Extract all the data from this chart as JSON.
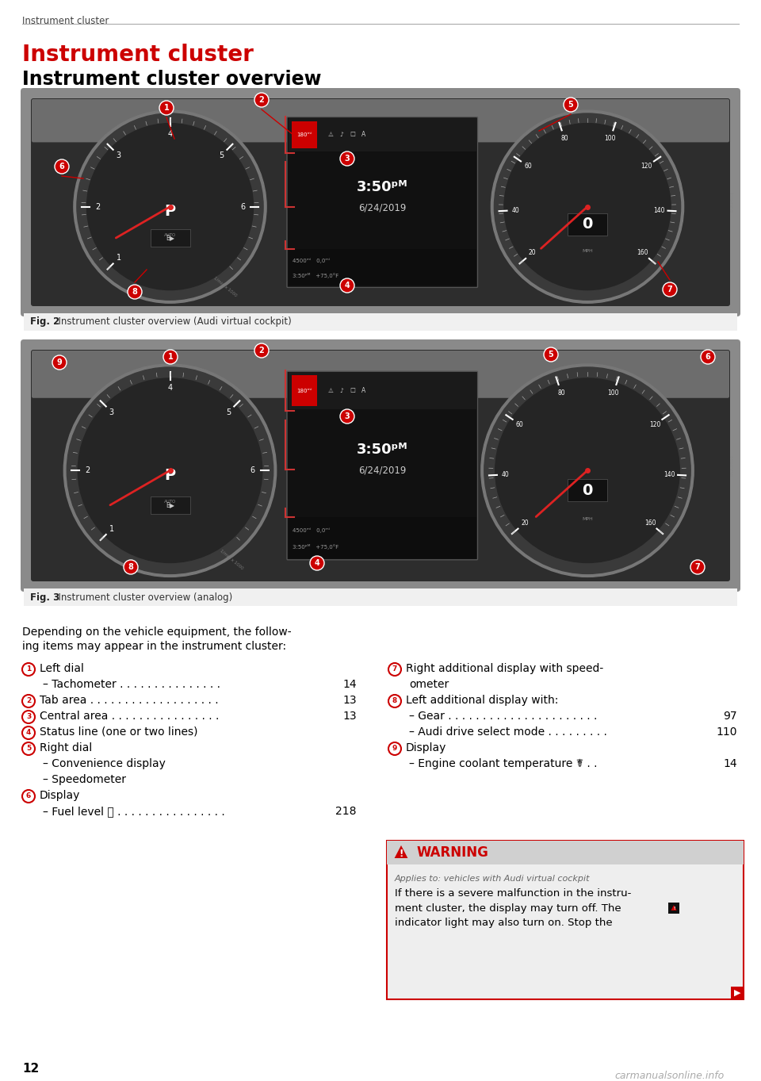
{
  "page_header": "Instrument cluster",
  "section_title": "Instrument cluster",
  "section_subtitle": "Instrument cluster overview",
  "fig2_caption_bold": "Fig. 2",
  "fig2_caption_rest": "  Instrument cluster overview (Audi virtual cockpit)",
  "fig3_caption_bold": "Fig. 3",
  "fig3_caption_rest": "  Instrument cluster overview (analog)",
  "body_line1": "Depending on the vehicle equipment, the follow-",
  "body_line2": "ing items may appear in the instrument cluster:",
  "left_items": [
    {
      "num": "1",
      "text": "Left dial",
      "bold": false,
      "indent": false,
      "page": ""
    },
    {
      "num": "",
      "text": "– Tachometer . . . . . . . . . . . . . . .",
      "bold": false,
      "indent": true,
      "page": "14"
    },
    {
      "num": "2",
      "text": "Tab area . . . . . . . . . . . . . . . . . . .",
      "bold": false,
      "indent": false,
      "page": "13"
    },
    {
      "num": "3",
      "text": "Central area . . . . . . . . . . . . . . . .",
      "bold": false,
      "indent": false,
      "page": "13"
    },
    {
      "num": "4",
      "text": "Status line (one or two lines)",
      "bold": false,
      "indent": false,
      "page": ""
    },
    {
      "num": "5",
      "text": "Right dial",
      "bold": false,
      "indent": false,
      "page": ""
    },
    {
      "num": "",
      "text": "– Convenience display",
      "bold": false,
      "indent": true,
      "page": ""
    },
    {
      "num": "",
      "text": "– Speedometer",
      "bold": false,
      "indent": true,
      "page": ""
    },
    {
      "num": "6",
      "text": "Display",
      "bold": false,
      "indent": false,
      "page": ""
    },
    {
      "num": "",
      "text": "– Fuel level Ⓓ . . . . . . . . . . . . . . . .",
      "bold": false,
      "indent": true,
      "page": "218"
    }
  ],
  "right_items": [
    {
      "num": "7",
      "text": "Right additional display with speed-",
      "bold": false,
      "indent": false,
      "page": ""
    },
    {
      "num": "",
      "text": "ometer",
      "bold": false,
      "indent": false,
      "page": ""
    },
    {
      "num": "8",
      "text": "Left additional display with:",
      "bold": false,
      "indent": false,
      "page": ""
    },
    {
      "num": "",
      "text": "– Gear . . . . . . . . . . . . . . . . . . . . . .",
      "bold": false,
      "indent": true,
      "page": "97"
    },
    {
      "num": "",
      "text": "– Audi drive select mode . . . . . . . . .",
      "bold": false,
      "indent": true,
      "page": "110"
    },
    {
      "num": "9",
      "text": "Display",
      "bold": false,
      "indent": false,
      "page": ""
    },
    {
      "num": "",
      "text": "– Engine coolant temperature ☤ . .",
      "bold": false,
      "indent": true,
      "page": "14"
    }
  ],
  "warning_title": "WARNING",
  "warning_applies": "Applies to: vehicles with Audi virtual cockpit",
  "warning_line1": "If there is a severe malfunction in the instru-",
  "warning_line2": "ment cluster, the display may turn off. The",
  "warning_line3": "indicator light may also turn on. Stop the",
  "page_number": "12",
  "bg_color": "#ffffff",
  "header_color": "#444444",
  "title_color": "#cc0000",
  "body_text_color": "#000000",
  "line_color": "#aaaaaa",
  "num_fill": "#cc0000",
  "num_stroke": "#cc0000",
  "warning_border_color": "#cc0000",
  "warning_header_bg": "#d0d0d0",
  "warning_body_bg": "#eeeeee",
  "watermark_color": "#aaaaaa",
  "fig_caption_bg": "#e8e8e8"
}
